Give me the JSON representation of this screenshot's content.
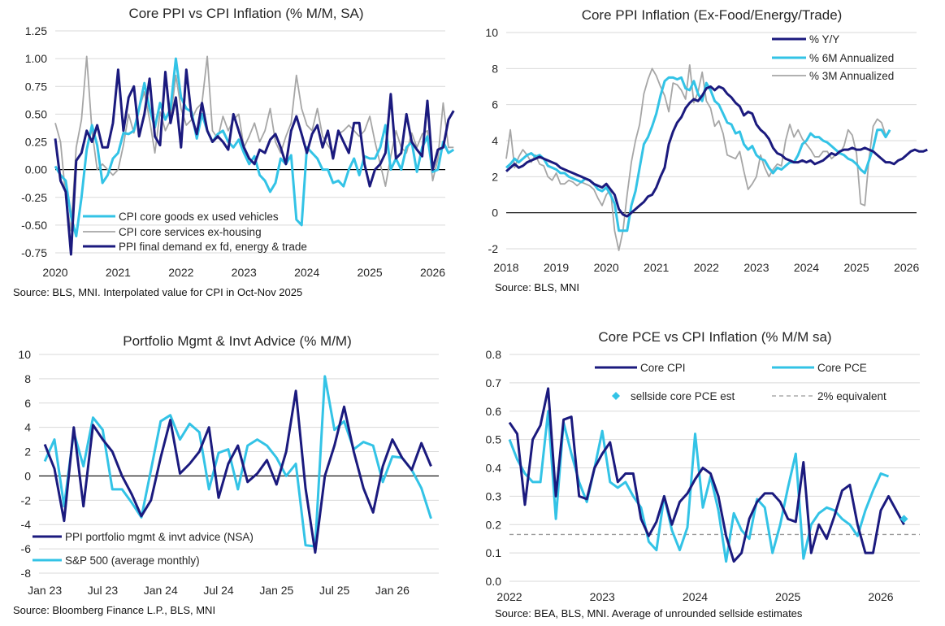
{
  "colors": {
    "navy": "#1b1a7e",
    "cyan": "#33c3e6",
    "gray": "#a6a6a6",
    "dash": "#9a9a9a"
  },
  "chart_data": [
    {
      "type": "line",
      "title": "Core PPI vs CPI Inflation (% M/M, SA)",
      "source": "Source: BLS, MNI. Interpolated value for CPI in Oct-Nov 2025",
      "ylim": [
        -0.75,
        1.25
      ],
      "yticks": [
        "1.25",
        "1.00",
        "0.75",
        "0.50",
        "0.25",
        "0.00",
        "-0.25",
        "-0.50",
        "-0.75"
      ],
      "xticks": [
        "2020",
        "2021",
        "2022",
        "2023",
        "2024",
        "2025",
        "2026"
      ],
      "x_start": 2020.0,
      "x_step": 0.08333,
      "legend_position": "bottom-left",
      "series": [
        {
          "name": "CPI core goods ex used vehicles",
          "color": "#33c3e6",
          "values": [
            0.03,
            -0.05,
            -0.1,
            -0.42,
            -0.6,
            -0.25,
            0.18,
            0.4,
            0.22,
            -0.12,
            -0.05,
            0.1,
            0.15,
            0.33,
            0.32,
            0.35,
            0.55,
            0.78,
            0.55,
            0.38,
            0.6,
            0.45,
            0.55,
            1.0,
            0.65,
            0.55,
            0.52,
            0.28,
            0.5,
            0.35,
            0.25,
            0.32,
            0.35,
            0.25,
            0.2,
            0.27,
            0.15,
            0.05,
            0.12,
            -0.05,
            -0.1,
            -0.2,
            -0.12,
            0.1,
            0.05,
            0.13,
            -0.45,
            -0.5,
            0.2,
            0.15,
            0.1,
            0.0,
            0.0,
            -0.12,
            -0.1,
            -0.15,
            0.0,
            0.1,
            -0.05,
            0.12,
            0.1,
            0.1,
            0.2,
            0.4,
            0.0,
            0.1,
            0.0,
            0.2,
            0.25,
            -0.02,
            0.2,
            0.3,
            -0.02,
            0.0,
            0.25,
            0.15,
            0.18
          ]
        },
        {
          "name": "CPI core services ex-housing",
          "color": "#a6a6a6",
          "values": [
            0.42,
            0.25,
            -0.25,
            -0.55,
            0.2,
            0.45,
            1.02,
            0.35,
            0.0,
            0.05,
            0.0,
            -0.05,
            0.0,
            0.22,
            0.5,
            0.33,
            0.55,
            0.7,
            0.45,
            0.15,
            0.52,
            0.35,
            0.45,
            0.85,
            0.55,
            0.4,
            0.45,
            0.55,
            0.6,
            1.02,
            0.35,
            0.28,
            0.48,
            0.35,
            0.45,
            0.5,
            0.2,
            0.3,
            0.42,
            0.25,
            0.35,
            0.55,
            0.25,
            0.15,
            0.3,
            0.42,
            0.85,
            0.55,
            0.4,
            0.35,
            0.55,
            0.3,
            0.22,
            0.15,
            0.32,
            0.35,
            0.4,
            0.35,
            0.3,
            0.35,
            0.48,
            0.25,
            0.05,
            -0.15,
            0.12,
            0.35,
            0.2,
            0.15,
            0.33,
            0.2,
            0.32,
            0.35,
            -0.1,
            0.1,
            0.6,
            0.2,
            0.2
          ]
        },
        {
          "name": "PPI final demand ex fd, energy & trade",
          "color": "#1b1a7e",
          "values": [
            0.28,
            -0.1,
            -0.2,
            -0.85,
            0.08,
            0.15,
            0.35,
            0.25,
            0.4,
            0.2,
            0.2,
            0.42,
            0.9,
            0.35,
            0.65,
            0.75,
            0.3,
            0.5,
            0.82,
            0.3,
            0.22,
            0.88,
            0.42,
            0.65,
            0.2,
            0.9,
            0.48,
            0.32,
            0.6,
            0.35,
            0.25,
            0.3,
            0.25,
            0.18,
            0.5,
            0.35,
            0.2,
            0.1,
            0.05,
            0.18,
            0.15,
            0.27,
            0.32,
            0.2,
            0.05,
            0.35,
            0.48,
            0.32,
            0.15,
            0.32,
            0.4,
            0.2,
            0.35,
            0.1,
            0.35,
            0.25,
            0.15,
            0.42,
            0.42,
            0.05,
            -0.15,
            0.0,
            0.05,
            0.15,
            0.68,
            0.1,
            0.15,
            0.5,
            0.25,
            0.18,
            0.12,
            0.62,
            0.0,
            0.18,
            0.2,
            0.45,
            0.53
          ]
        }
      ]
    },
    {
      "type": "line",
      "title": "Core PPI Inflation (Ex-Food/Energy/Trade)",
      "source": "Source: BLS, MNI",
      "ylim": [
        -2,
        10
      ],
      "yticks": [
        "10",
        "8",
        "6",
        "4",
        "2",
        "0",
        "-2"
      ],
      "xticks": [
        "2018",
        "2019",
        "2020",
        "2021",
        "2022",
        "2023",
        "2024",
        "2025",
        "2026"
      ],
      "x_start": 2018.0,
      "x_step": 0.08333,
      "legend_position": "top-right",
      "series": [
        {
          "name": "% Y/Y",
          "color": "#1b1a7e",
          "values": [
            2.3,
            2.5,
            2.7,
            2.5,
            2.6,
            2.8,
            2.9,
            3.0,
            3.1,
            3.0,
            2.9,
            2.8,
            2.7,
            2.5,
            2.4,
            2.3,
            2.2,
            2.1,
            2.0,
            1.9,
            1.8,
            1.6,
            1.5,
            1.4,
            1.6,
            1.3,
            1.0,
            0.2,
            -0.1,
            -0.2,
            0.0,
            0.2,
            0.4,
            0.6,
            0.9,
            1.0,
            1.4,
            2.0,
            2.5,
            3.8,
            4.5,
            5.0,
            5.3,
            5.8,
            6.1,
            6.3,
            6.2,
            6.5,
            6.9,
            7.0,
            6.8,
            7.0,
            6.9,
            6.6,
            6.4,
            6.1,
            5.9,
            5.4,
            5.6,
            5.5,
            4.9,
            4.6,
            4.4,
            4.1,
            3.6,
            3.3,
            3.2,
            3.0,
            2.9,
            2.8,
            2.8,
            2.9,
            2.8,
            2.9,
            2.7,
            2.8,
            2.9,
            3.1,
            3.3,
            3.2,
            3.4,
            3.5,
            3.5,
            3.6,
            3.5,
            3.5,
            3.6,
            3.5,
            3.4,
            3.2,
            3.0,
            2.8,
            2.8,
            2.7,
            2.9,
            3.0,
            3.2,
            3.4,
            3.5,
            3.4,
            3.4,
            3.5
          ]
        },
        {
          "name": "% 6M Annualized",
          "color": "#33c3e6",
          "values": [
            2.5,
            2.7,
            3.0,
            2.8,
            3.0,
            3.2,
            3.3,
            3.1,
            3.2,
            3.0,
            2.6,
            2.5,
            2.4,
            2.2,
            2.2,
            2.0,
            1.9,
            1.8,
            1.7,
            1.9,
            1.8,
            1.6,
            1.3,
            1.2,
            1.4,
            1.0,
            0.5,
            -1.0,
            -1.0,
            -1.0,
            0.4,
            1.2,
            2.5,
            3.8,
            4.2,
            4.8,
            5.5,
            6.5,
            7.3,
            7.5,
            7.5,
            7.4,
            7.5,
            6.9,
            6.8,
            7.3,
            6.6,
            6.2,
            7.2,
            6.8,
            6.2,
            6.0,
            5.5,
            5.0,
            4.9,
            4.4,
            4.5,
            3.8,
            3.5,
            3.7,
            3.2,
            3.0,
            2.9,
            2.5,
            2.2,
            2.5,
            2.4,
            2.6,
            2.8,
            2.8,
            3.2,
            3.8,
            4.0,
            4.4,
            4.2,
            4.2,
            4.0,
            3.9,
            3.7,
            3.5,
            3.3,
            3.2,
            3.0,
            2.9,
            2.7,
            2.4,
            2.2,
            2.9,
            3.6,
            4.6,
            4.6,
            4.2,
            4.6
          ]
        },
        {
          "name": "% 3M Annualized",
          "color": "#a6a6a6",
          "values": [
            3.0,
            4.6,
            2.5,
            3.1,
            3.5,
            3.2,
            2.8,
            3.2,
            2.7,
            2.6,
            2.0,
            1.8,
            2.2,
            1.6,
            1.6,
            1.8,
            1.7,
            1.5,
            1.7,
            1.6,
            1.5,
            1.3,
            0.8,
            0.4,
            1.0,
            1.3,
            -1.0,
            -3.0,
            -1.0,
            1.0,
            2.8,
            4.0,
            4.9,
            6.6,
            7.4,
            8.0,
            7.6,
            7.0,
            6.5,
            5.6,
            7.2,
            7.1,
            6.8,
            6.3,
            8.2,
            6.1,
            6.7,
            7.8,
            6.2,
            5.8,
            4.8,
            5.1,
            4.4,
            3.2,
            3.1,
            3.0,
            3.4,
            2.3,
            1.3,
            1.6,
            2.0,
            3.2,
            2.5,
            2.0,
            2.4,
            2.7,
            2.6,
            4.0,
            4.9,
            4.2,
            4.6,
            4.1,
            3.8,
            3.5,
            3.1,
            3.1,
            3.4,
            3.4,
            3.0,
            3.2,
            3.3,
            3.7,
            4.6,
            4.3,
            3.3,
            0.5,
            0.4,
            3.0,
            4.8,
            5.2,
            5.0,
            4.3,
            4.5
          ]
        }
      ]
    },
    {
      "type": "line",
      "title": "Portfolio Mgmt & Invt Advice (% M/M)",
      "source": "Source: Bloomberg Finance L.P., BLS, MNI",
      "ylim": [
        -8,
        10
      ],
      "yticks": [
        "10",
        "8",
        "6",
        "4",
        "2",
        "0",
        "-2",
        "-4",
        "-6",
        "-8"
      ],
      "xticks": [
        "Jan 23",
        "Jul 23",
        "Jan 24",
        "Jul 24",
        "Jan 25",
        "Jul 25",
        "Jan 26"
      ],
      "x_start": 2023.0,
      "x_step": 0.08333,
      "legend_position": "bottom-left",
      "series": [
        {
          "name": "PPI portfolio mgmt & invt advice (NSA)",
          "color": "#1b1a7e",
          "values": [
            2.6,
            0.6,
            -3.7,
            4.0,
            -2.5,
            4.2,
            3.0,
            2.0,
            0.0,
            -1.5,
            -3.3,
            -2.0,
            1.5,
            4.6,
            0.2,
            1.0,
            2.0,
            4.0,
            -1.8,
            1.0,
            2.5,
            -0.5,
            0.2,
            1.3,
            -0.7,
            2.0,
            7.0,
            -1.0,
            -6.3,
            0.0,
            2.5,
            5.7,
            2.0,
            -1.0,
            -3.0,
            0.8,
            3.0,
            1.5,
            0.5,
            2.7,
            0.8
          ]
        },
        {
          "name": "S&P 500 (average monthly)",
          "color": "#33c3e6",
          "values": [
            1.2,
            3.0,
            -2.5,
            3.6,
            0.8,
            4.8,
            3.8,
            -1.1,
            -1.1,
            -2.2,
            -3.4,
            0.5,
            4.5,
            5.0,
            3.0,
            4.3,
            3.6,
            -1.1,
            1.9,
            2.2,
            -1.1,
            2.5,
            3.0,
            2.5,
            1.5,
            0.0,
            1.0,
            -5.7,
            -5.8,
            8.2,
            3.8,
            4.5,
            2.2,
            2.8,
            2.5,
            -0.5,
            1.6,
            1.5,
            0.5,
            -1.0,
            -3.5
          ]
        }
      ]
    },
    {
      "type": "line",
      "title": "Core PCE vs CPI Inflation (% M/M sa)",
      "source": "Source: BEA, BLS, MNI. Average of unrounded sellside estimates",
      "ylim": [
        0,
        0.8
      ],
      "yticks": [
        "0.8",
        "0.7",
        "0.6",
        "0.5",
        "0.4",
        "0.3",
        "0.2",
        "0.1",
        "0.0"
      ],
      "xticks": [
        "2022",
        "2023",
        "2024",
        "2025",
        "2026"
      ],
      "x_start": 2022.0,
      "x_step": 0.08333,
      "legend_position": "top",
      "series": [
        {
          "name": "Core CPI",
          "color": "#1b1a7e",
          "values": [
            0.56,
            0.52,
            0.27,
            0.5,
            0.55,
            0.68,
            0.3,
            0.57,
            0.58,
            0.3,
            0.29,
            0.4,
            0.45,
            0.49,
            0.35,
            0.38,
            0.38,
            0.22,
            0.16,
            0.21,
            0.3,
            0.2,
            0.28,
            0.31,
            0.36,
            0.4,
            0.38,
            0.3,
            0.16,
            0.07,
            0.1,
            0.22,
            0.28,
            0.31,
            0.31,
            0.28,
            0.22,
            0.21,
            0.42,
            0.1,
            0.2,
            0.15,
            0.23,
            0.32,
            0.34,
            0.2,
            0.1,
            0.1,
            0.25,
            0.3,
            0.25,
            0.2
          ]
        },
        {
          "name": "Core PCE",
          "color": "#33c3e6",
          "values": [
            0.5,
            0.43,
            0.38,
            0.35,
            0.35,
            0.6,
            0.22,
            0.56,
            0.45,
            0.35,
            0.28,
            0.4,
            0.53,
            0.35,
            0.33,
            0.35,
            0.3,
            0.26,
            0.14,
            0.11,
            0.3,
            0.18,
            0.11,
            0.19,
            0.52,
            0.26,
            0.37,
            0.25,
            0.07,
            0.24,
            0.18,
            0.15,
            0.29,
            0.26,
            0.1,
            0.2,
            0.33,
            0.45,
            0.08,
            0.2,
            0.24,
            0.26,
            0.25,
            0.22,
            0.2,
            0.16,
            0.25,
            0.32,
            0.38,
            0.37
          ]
        },
        {
          "name": "sellside core PCE est",
          "color": "#33c3e6",
          "marker": "diamond",
          "x_index": 51,
          "values": [
            0.22
          ]
        },
        {
          "name": "2% equivalent",
          "color": "#9a9a9a",
          "style": "dashed",
          "values": [
            0.165
          ]
        }
      ]
    }
  ]
}
